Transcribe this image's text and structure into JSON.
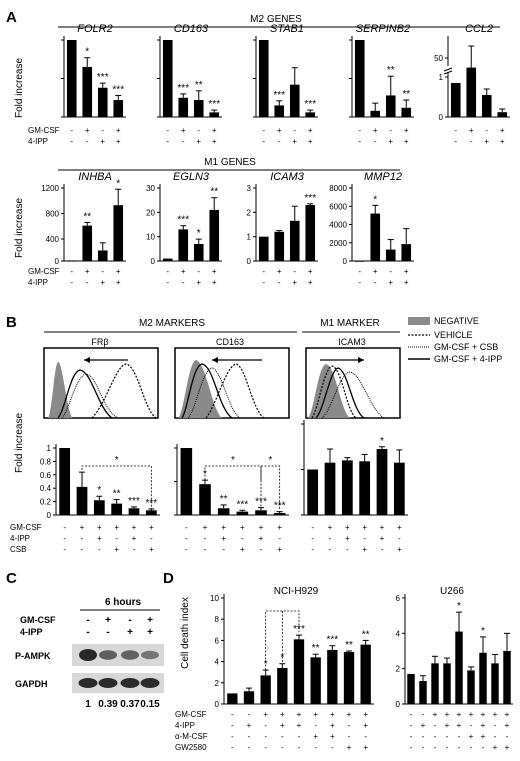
{
  "panel_labels": {
    "a": "A",
    "b": "B",
    "c": "C",
    "d": "D"
  },
  "section_titles": {
    "m2_genes": "M2 GENES",
    "m1_genes": "M1 GENES",
    "m2_markers": "M2 MARKERS",
    "m1_marker": "M1 MARKER"
  },
  "y_labels": {
    "fold_increase": "Fold increase",
    "cell_death": "Cell death index"
  },
  "row_labels": {
    "gmcsf": "GM-CSF",
    "ipp": "4-IPP",
    "csb": "CSB",
    "amcsf": "α-M-CSF",
    "gw": "GW2580"
  },
  "legend": [
    "NEGATIVE",
    "VEHICLE",
    "GM-CSF + CSB",
    "GM-CSF + 4-IPP"
  ],
  "flow_titles": {
    "fr": "FRβ",
    "cd163": "CD163",
    "icam3": "ICAM3"
  },
  "western": {
    "title": "6 hours",
    "rows": [
      "GM-CSF",
      "4-IPP"
    ],
    "signs": [
      [
        "-",
        "+",
        "-",
        "+"
      ],
      [
        "-",
        "-",
        "+",
        "+"
      ]
    ],
    "bands": [
      "P-AMPK",
      "GAPDH"
    ],
    "quant": [
      "1",
      "0.39",
      "0.37",
      "0.15"
    ]
  },
  "d_titles": {
    "nci": "NCI-H929",
    "u266": "U266"
  },
  "chart_data": [
    {
      "type": "bar",
      "title": "FOLR2",
      "ylim": [
        0,
        1
      ],
      "ticks": [],
      "values": [
        1,
        0.65,
        0.38,
        0.22
      ],
      "errors": [
        0,
        0.12,
        0.06,
        0.06
      ],
      "stars": [
        "",
        "*",
        "***",
        "***"
      ]
    },
    {
      "type": "bar",
      "title": "CD163",
      "ylim": [
        0,
        1
      ],
      "ticks": [],
      "values": [
        1,
        0.25,
        0.22,
        0.06
      ],
      "errors": [
        0,
        0.05,
        0.12,
        0.03
      ],
      "stars": [
        "",
        "***",
        "**",
        "***"
      ]
    },
    {
      "type": "bar",
      "title": "STAB1",
      "ylim": [
        0,
        1
      ],
      "ticks": [],
      "values": [
        1,
        0.15,
        0.42,
        0.06
      ],
      "errors": [
        0,
        0.06,
        0.22,
        0.03
      ],
      "stars": [
        "",
        "***",
        "",
        "***"
      ]
    },
    {
      "type": "bar",
      "title": "SERPINB2",
      "ylim": [
        0,
        1
      ],
      "ticks": [],
      "values": [
        1,
        0.08,
        0.28,
        0.12
      ],
      "errors": [
        0,
        0.1,
        0.25,
        0.1
      ],
      "stars": [
        "",
        "",
        "**",
        "**"
      ]
    },
    {
      "type": "bar",
      "title": "CCL2",
      "ticks": [
        "0",
        "1",
        "50"
      ],
      "values": [
        0.85,
        42,
        0.55,
        0.12
      ],
      "errors": [
        0,
        18,
        0.15,
        0.08
      ],
      "stars": [
        "",
        "",
        "",
        ""
      ]
    },
    {
      "type": "bar",
      "title": "INHBA",
      "ticks": [
        "0",
        "400",
        "800",
        "1200"
      ],
      "values": [
        5,
        610,
        220,
        930
      ],
      "errors": [
        0,
        50,
        120,
        250
      ],
      "stars": [
        "",
        "**",
        "",
        "*"
      ]
    },
    {
      "type": "bar",
      "title": "EGLN3",
      "ylim": [
        0,
        30
      ],
      "ticks": [
        "0",
        "10",
        "20",
        "30"
      ],
      "values": [
        1,
        13,
        7,
        21
      ],
      "errors": [
        0,
        1.5,
        2,
        5
      ],
      "stars": [
        "",
        "***",
        "*",
        "**"
      ]
    },
    {
      "type": "bar",
      "title": "ICAM3",
      "ylim": [
        0,
        3
      ],
      "ticks": [
        "0",
        "1",
        "2",
        "3"
      ],
      "values": [
        1,
        1.2,
        1.65,
        2.3
      ],
      "errors": [
        0,
        0.05,
        0.6,
        0.05
      ],
      "stars": [
        "",
        "",
        "",
        "***"
      ]
    },
    {
      "type": "bar",
      "title": "MMP12",
      "ylim": [
        0,
        8000
      ],
      "ticks": [
        "0",
        "2000",
        "4000",
        "6000",
        "8000"
      ],
      "values": [
        5,
        5200,
        1250,
        1850
      ],
      "errors": [
        0,
        900,
        1100,
        1700
      ],
      "stars": [
        "",
        "*",
        "",
        ""
      ]
    },
    {
      "type": "bar",
      "title": "FRβ",
      "ylim": [
        0,
        1
      ],
      "ticks": [
        "0",
        "0.2",
        "0.4",
        "0.6",
        "0.8",
        "1"
      ],
      "values": [
        1,
        0.42,
        0.22,
        0.17,
        0.1,
        0.07
      ],
      "errors": [
        0,
        0.22,
        0.06,
        0.06,
        0.02,
        0.02
      ],
      "stars": [
        "",
        "",
        "*",
        "**",
        "***",
        "***"
      ]
    },
    {
      "type": "bar",
      "title": "CD163",
      "ylim": [
        0,
        1
      ],
      "ticks": [],
      "values": [
        1,
        0.46,
        0.1,
        0.05,
        0.07,
        0.03
      ],
      "errors": [
        0,
        0.06,
        0.05,
        0.02,
        0.04,
        0.02
      ],
      "stars": [
        "",
        "*",
        "**",
        "***",
        "***",
        "***"
      ]
    },
    {
      "type": "bar",
      "title": "ICAM3",
      "ylim": [
        0,
        2
      ],
      "ticks": [],
      "values": [
        1,
        1.15,
        1.2,
        1.18,
        1.45,
        1.15
      ],
      "errors": [
        0,
        0.3,
        0.06,
        0.15,
        0.05,
        0.28
      ],
      "stars": [
        "",
        "",
        "",
        "",
        "*",
        ""
      ]
    },
    {
      "type": "bar",
      "title": "NCI-H929",
      "ylim": [
        0,
        10
      ],
      "ticks": [
        "0",
        "2",
        "4",
        "6",
        "8",
        "10"
      ],
      "values": [
        1,
        1.2,
        2.7,
        3.4,
        6.1,
        4.4,
        5.1,
        4.9,
        5.6
      ],
      "errors": [
        0,
        0.3,
        0.5,
        0.4,
        0.4,
        0.3,
        0.4,
        0.1,
        0.4
      ],
      "stars": [
        "",
        "",
        "*",
        "*",
        "***",
        "**",
        "***",
        "**",
        "**"
      ]
    },
    {
      "type": "bar",
      "title": "U266",
      "ylim": [
        0,
        6
      ],
      "ticks": [
        "0",
        "2",
        "4",
        "6"
      ],
      "values": [
        1.7,
        1.3,
        2.3,
        2.3,
        4.1,
        1.9,
        2.9,
        2.3,
        3.0
      ],
      "errors": [
        0,
        0.3,
        0.4,
        0.3,
        1.1,
        0.2,
        0.9,
        0.5,
        1.0
      ],
      "stars": [
        "",
        "",
        "",
        "",
        "*",
        "",
        "*",
        "",
        ""
      ]
    }
  ]
}
